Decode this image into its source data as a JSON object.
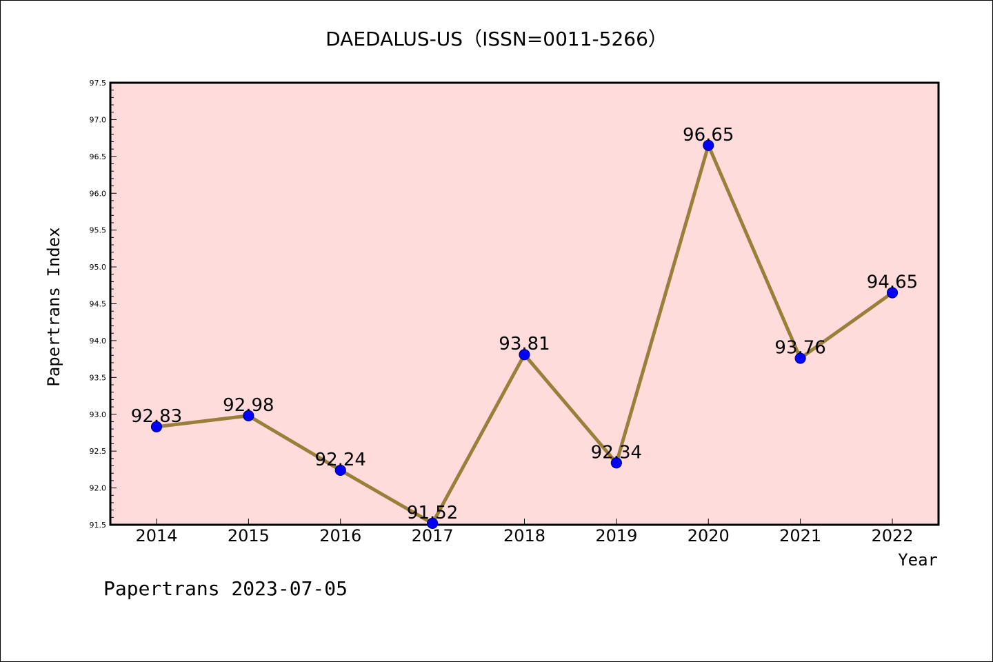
{
  "chart_data": {
    "type": "line",
    "title": "DAEDALUS-US（ISSN=0011-5266）",
    "xlabel": "Year",
    "ylabel": "Papertrans Index",
    "footer": "Papertrans 2023-07-05",
    "categories": [
      "2014",
      "2015",
      "2016",
      "2017",
      "2018",
      "2019",
      "2020",
      "2021",
      "2022"
    ],
    "values": [
      92.83,
      92.98,
      92.24,
      91.52,
      93.81,
      92.34,
      96.65,
      93.76,
      94.65
    ],
    "data_labels": [
      "92.83",
      "92.98",
      "92.24",
      "91.52",
      "93.81",
      "92.34",
      "96.65",
      "93.76",
      "94.65"
    ],
    "ylim": [
      91.5,
      97.5
    ],
    "yticks": [
      "91.5",
      "92.0",
      "92.5",
      "93.0",
      "93.5",
      "94.0",
      "94.5",
      "95.0",
      "95.5",
      "96.0",
      "96.5",
      "97.0",
      "97.5"
    ],
    "grid": false,
    "legend": "none",
    "colors": {
      "plot_background": "#fddcdb",
      "line": "#9a7f3a",
      "marker": "#0000ff",
      "axis": "#000000"
    }
  }
}
